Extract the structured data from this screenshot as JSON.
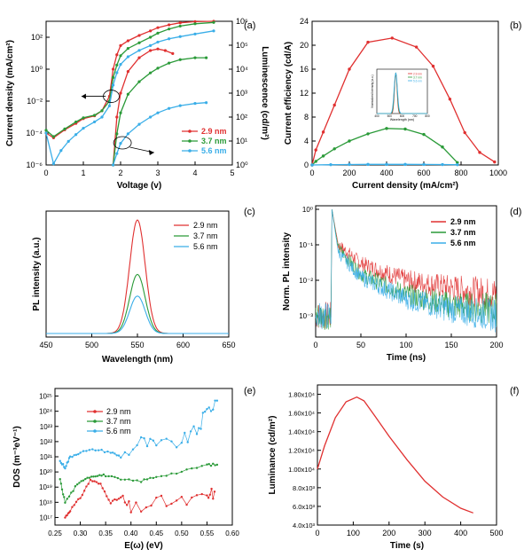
{
  "colors": {
    "red": "#e03030",
    "green": "#2a9a38",
    "blue": "#3aaee8"
  },
  "chart_data": [
    {
      "panel": "(a)",
      "type": "line",
      "xlabel": "Voltage (v)",
      "ylabel": "Current density (mA/cm²)",
      "ylabel_right": "Luminescence (cd/m²)",
      "xlim": [
        0,
        5
      ],
      "xticks": [
        "0",
        "1",
        "2",
        "3",
        "4",
        "5"
      ],
      "yscale": "log",
      "ylim_exp": [
        -6,
        3
      ],
      "yticks": [
        "10⁻⁶",
        "10⁻⁴",
        "10⁻²",
        "10⁰",
        "10²"
      ],
      "yticks_right": [
        "10⁰",
        "10¹",
        "10²",
        "10³",
        "10⁴",
        "10⁵",
        "10⁶"
      ],
      "legend": [
        "2.9 nm",
        "3.7 nm",
        "5.6 nm"
      ],
      "legend_position": "bottom-right",
      "series": [
        {
          "name": "2.9 nm",
          "axis": "left",
          "color": "#e03030",
          "x": [
            0,
            0.2,
            0.5,
            0.8,
            1.0,
            1.3,
            1.5,
            1.7,
            1.8,
            1.9,
            2.0,
            2.2,
            2.5,
            2.8,
            3.0,
            3.3,
            3.6,
            4.0,
            4.5
          ],
          "y": [
            0.0001,
            5e-05,
            0.00016,
            0.0004,
            0.0008,
            0.0012,
            0.0025,
            0.02,
            1,
            8,
            30,
            60,
            130,
            250,
            400,
            600,
            800,
            950,
            1000
          ]
        },
        {
          "name": "3.7 nm",
          "axis": "left",
          "color": "#2a9a38",
          "x": [
            0,
            0.2,
            0.5,
            0.8,
            1.0,
            1.3,
            1.5,
            1.7,
            1.8,
            1.9,
            2.0,
            2.2,
            2.5,
            2.8,
            3.0,
            3.3,
            3.6,
            4.0,
            4.5
          ],
          "y": [
            0.00015,
            6e-05,
            0.00018,
            0.0005,
            0.0009,
            0.0013,
            0.0025,
            0.01,
            0.3,
            1.8,
            7,
            20,
            45,
            100,
            180,
            330,
            500,
            700,
            850
          ]
        },
        {
          "name": "5.6 nm",
          "axis": "left",
          "color": "#3aaee8",
          "x": [
            0,
            0.2,
            0.4,
            0.6,
            0.8,
            1.0,
            1.3,
            1.5,
            1.7,
            1.8,
            1.9,
            2.0,
            2.2,
            2.5,
            2.8,
            3.0,
            3.3,
            3.6,
            4.0,
            4.5
          ],
          "y": [
            0.0001,
            1.2e-06,
            8e-06,
            3e-05,
            8e-05,
            0.0002,
            0.0005,
            0.001,
            0.005,
            0.1,
            0.6,
            2,
            6,
            15,
            30,
            50,
            80,
            110,
            160,
            250
          ]
        },
        {
          "name": "2.9 nm",
          "axis": "right",
          "color": "#e03030",
          "x": [
            1.8,
            1.9,
            2.0,
            2.2,
            2.5,
            2.8,
            3.0,
            3.2,
            3.4
          ],
          "y": [
            1,
            100,
            1000,
            8000,
            30000,
            60000,
            70000,
            60000,
            45000
          ]
        },
        {
          "name": "3.7 nm",
          "axis": "right",
          "color": "#2a9a38",
          "x": [
            1.8,
            1.9,
            2.0,
            2.2,
            2.5,
            2.8,
            3.0,
            3.3,
            3.6,
            4.0,
            4.3
          ],
          "y": [
            1,
            20,
            150,
            900,
            3000,
            7000,
            11000,
            18000,
            25000,
            30000,
            30000
          ]
        },
        {
          "name": "5.6 nm",
          "axis": "right",
          "color": "#3aaee8",
          "x": [
            1.8,
            1.9,
            2.0,
            2.2,
            2.5,
            2.8,
            3.0,
            3.3,
            3.6,
            4.0,
            4.3
          ],
          "y": [
            1,
            3,
            8,
            20,
            50,
            100,
            150,
            230,
            300,
            370,
            400
          ]
        }
      ]
    },
    {
      "panel": "(b)",
      "type": "line",
      "xlabel": "Current density (mA/cm²)",
      "ylabel": "Current efficiency (cd/A)",
      "xlim": [
        0,
        1000
      ],
      "xticks": [
        "0",
        "200",
        "400",
        "600",
        "800",
        "1000"
      ],
      "ylim": [
        0,
        24
      ],
      "yticks": [
        "0",
        "4",
        "8",
        "12",
        "16",
        "20",
        "24"
      ],
      "inset": {
        "xlabel": "Wavelength (nm)",
        "ylabel": "Normalized Intensity (a.u.)",
        "legend": [
          "2.9 nm",
          "3.7 nm",
          "5.6 nm"
        ],
        "xticks": [
          "400",
          "500",
          "600",
          "700",
          "800"
        ]
      },
      "series": [
        {
          "name": "2.9 nm",
          "color": "#e03030",
          "x": [
            0,
            20,
            60,
            120,
            200,
            300,
            430,
            560,
            650,
            740,
            820,
            900,
            980
          ],
          "y": [
            0,
            2.5,
            5.5,
            10,
            16,
            20.5,
            21.2,
            19.7,
            16.5,
            11,
            5.4,
            2.1,
            0.5
          ]
        },
        {
          "name": "3.7 nm",
          "color": "#2a9a38",
          "x": [
            0,
            20,
            60,
            120,
            200,
            300,
            400,
            500,
            600,
            700,
            780
          ],
          "y": [
            0,
            0.6,
            1.5,
            2.7,
            4,
            5.2,
            6.1,
            6,
            5.1,
            3,
            0.4
          ]
        },
        {
          "name": "5.6 nm",
          "color": "#3aaee8",
          "x": [
            0,
            100,
            200,
            300,
            400,
            500,
            600,
            700,
            780
          ],
          "y": [
            0,
            0.05,
            0.08,
            0.1,
            0.1,
            0.1,
            0.09,
            0.07,
            0.05
          ]
        }
      ]
    },
    {
      "panel": "(c)",
      "type": "line",
      "xlabel": "Wavelength (nm)",
      "ylabel": "PL intensity (a.u.)",
      "xlim": [
        450,
        650
      ],
      "xticks": [
        "450",
        "500",
        "550",
        "600",
        "650"
      ],
      "legend": [
        "2.9 nm",
        "3.7 nm",
        "5.6 nm"
      ],
      "legend_position": "top-right",
      "peak_wavelength": 550,
      "series": [
        {
          "name": "2.9 nm",
          "color": "#e03030",
          "peak": 1.0
        },
        {
          "name": "3.7 nm",
          "color": "#2a9a38",
          "peak": 0.52
        },
        {
          "name": "5.6 nm",
          "color": "#3aaee8",
          "peak": 0.33
        }
      ]
    },
    {
      "panel": "(d)",
      "type": "line",
      "xlabel": "Time (ns)",
      "ylabel": "Norm. PL intensity",
      "xlim": [
        0,
        200
      ],
      "xticks": [
        "0",
        "50",
        "100",
        "150",
        "200"
      ],
      "yscale": "log",
      "yticks": [
        "10⁻³",
        "10⁻²",
        "10⁻¹",
        "10⁰"
      ],
      "legend": [
        "2.9 nm",
        "3.7 nm",
        "5.6 nm"
      ],
      "legend_position": "top-right",
      "series": [
        {
          "name": "2.9 nm",
          "color": "#e03030",
          "x": [
            18,
            25,
            50,
            100,
            150,
            200
          ],
          "y": [
            1,
            0.1,
            0.03,
            0.01,
            0.006,
            0.004
          ]
        },
        {
          "name": "3.7 nm",
          "color": "#2a9a38",
          "x": [
            18,
            25,
            50,
            100,
            150,
            200
          ],
          "y": [
            1,
            0.08,
            0.015,
            0.004,
            0.002,
            0.0015
          ]
        },
        {
          "name": "5.6 nm",
          "color": "#3aaee8",
          "x": [
            18,
            25,
            50,
            100,
            150,
            200
          ],
          "y": [
            1,
            0.06,
            0.012,
            0.003,
            0.0015,
            0.001
          ]
        }
      ]
    },
    {
      "panel": "(e)",
      "type": "scatter",
      "xlabel": "E(ω) (eV)",
      "ylabel": "DOS (m⁻³eV⁻¹)",
      "xlim": [
        0.25,
        0.6
      ],
      "xticks": [
        "0.25",
        "0.30",
        "0.35",
        "0.40",
        "0.45",
        "0.50",
        "0.55",
        "0.60"
      ],
      "yscale": "log",
      "ylim_exp": [
        16.5,
        25.5
      ],
      "yticks": [
        "10¹⁷",
        "10¹⁸",
        "10¹⁹",
        "10²⁰",
        "10²¹",
        "10²²",
        "10²³",
        "10²⁴",
        "10²⁵"
      ],
      "legend": [
        "2.9 nm",
        "3.7 nm",
        "5.6 nm"
      ],
      "legend_position": "top-left",
      "series": [
        {
          "name": "2.9 nm",
          "color": "#e03030",
          "x": [
            0.27,
            0.28,
            0.3,
            0.32,
            0.34,
            0.36,
            0.38,
            0.4,
            0.45,
            0.5,
            0.55,
            0.565
          ],
          "y": [
            1e+17,
            3e+17,
            2e+18,
            3e+19,
            1.5e+19,
            1e+18,
            2e+18,
            3e+17,
            1e+18,
            1e+18,
            2e+18,
            5e+18
          ]
        },
        {
          "name": "3.7 nm",
          "color": "#2a9a38",
          "x": [
            0.26,
            0.27,
            0.29,
            0.31,
            0.33,
            0.35,
            0.38,
            0.42,
            0.45,
            0.5,
            0.55,
            0.57
          ],
          "y": [
            3e+19,
            1e+18,
            1e+19,
            4e+19,
            6e+19,
            6e+19,
            3e+19,
            2.5e+19,
            5e+19,
            1e+20,
            3e+20,
            3e+20
          ]
        },
        {
          "name": "5.6 nm",
          "color": "#3aaee8",
          "x": [
            0.26,
            0.27,
            0.28,
            0.3,
            0.33,
            0.36,
            0.38,
            0.42,
            0.45,
            0.5,
            0.53,
            0.55,
            0.57
          ],
          "y": [
            5e+20,
            2e+20,
            1e+21,
            2e+21,
            3e+21,
            2e+21,
            1e+21,
            1e+22,
            5e+21,
            1e+22,
            5e+22,
            1e+24,
            5e+24
          ]
        }
      ]
    },
    {
      "panel": "(f)",
      "type": "line",
      "xlabel": "Time (s)",
      "ylabel": "Luminance (cd/m²)",
      "xlim": [
        0,
        500
      ],
      "xticks": [
        "0",
        "100",
        "200",
        "300",
        "400",
        "500"
      ],
      "ylim": [
        4000,
        19000
      ],
      "yticks": [
        "4.0x10³",
        "6.0x10³",
        "8.0x10³",
        "1.00x10⁴",
        "1.20x10⁴",
        "1.40x10⁴",
        "1.60x10⁴",
        "1.80x10⁴"
      ],
      "series": [
        {
          "name": "",
          "color": "#e03030",
          "x": [
            0,
            20,
            50,
            80,
            110,
            130,
            160,
            200,
            250,
            300,
            350,
            400,
            435
          ],
          "y": [
            10000,
            12500,
            15500,
            17200,
            17700,
            17300,
            15700,
            13500,
            11000,
            8700,
            7000,
            5800,
            5300
          ]
        }
      ]
    }
  ]
}
